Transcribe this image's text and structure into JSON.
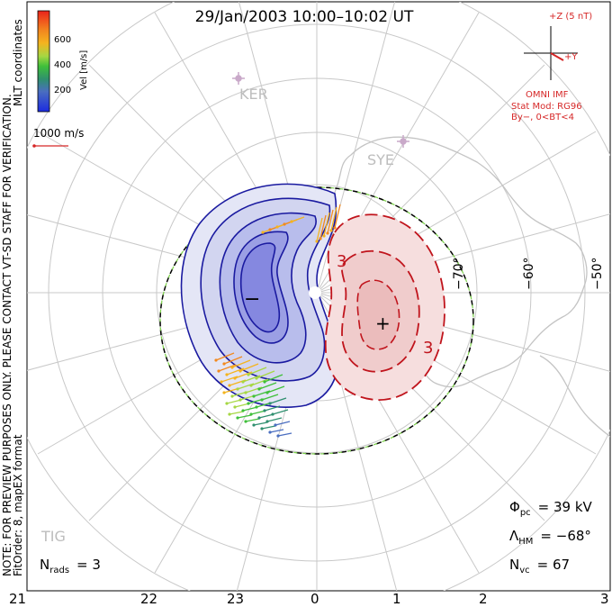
{
  "title": "29/Jan/2003 10:00–10:02 UT",
  "side_note_line1": "NOTE: FOR PREVIEW PURPOSES ONLY. PLEASE CONTACT VT-SD STAFF FOR VERIFICATION.",
  "side_note_line2": "FitOrder: 8, mapEX format",
  "coord_label": "MLT coordinates",
  "colorbar": {
    "label": "Vel [m/s]",
    "ticks": [
      "600",
      "400",
      "200"
    ],
    "colors": [
      "#e8231c",
      "#f0561d",
      "#f2891f",
      "#f4b41f",
      "#a6d743",
      "#3fbf3a",
      "#2f8f6f",
      "#4a6ec0",
      "#1c2be0"
    ]
  },
  "scale_vector": {
    "label": "1000 m/s",
    "color": "#d62828"
  },
  "imf": {
    "z_label": "+Z (5 nT)",
    "y_label": "+Y",
    "source": "OMNI IMF",
    "model": "Stat Mod: RG96",
    "condition": "By−, 0<BT<4",
    "color": "#d62828"
  },
  "stations": [
    {
      "name": "KER"
    },
    {
      "name": "SYE"
    },
    {
      "name": "TIG"
    }
  ],
  "lat_labels": [
    "−70°",
    "−60°",
    "−50°"
  ],
  "mlt_labels": [
    "21",
    "22",
    "23",
    "0",
    "1",
    "2",
    "3"
  ],
  "contours": {
    "negative_color": "#1a1aa0",
    "positive_color": "#c0141c",
    "negative_marker": "−",
    "positive_marker": "+",
    "value_label": "3"
  },
  "stats": {
    "phi_pc_symbol": "Φ",
    "phi_pc_sub": "pc",
    "phi_pc_value": "= 39 kV",
    "lambda_symbol": "Λ",
    "lambda_sub": "HM",
    "lambda_value": "= −68°",
    "nvc_symbol": "N",
    "nvc_sub": "vc",
    "nvc_value": "= 67",
    "nrads_symbol": "N",
    "nrads_sub": "rads",
    "nrads_value": "= 3"
  }
}
